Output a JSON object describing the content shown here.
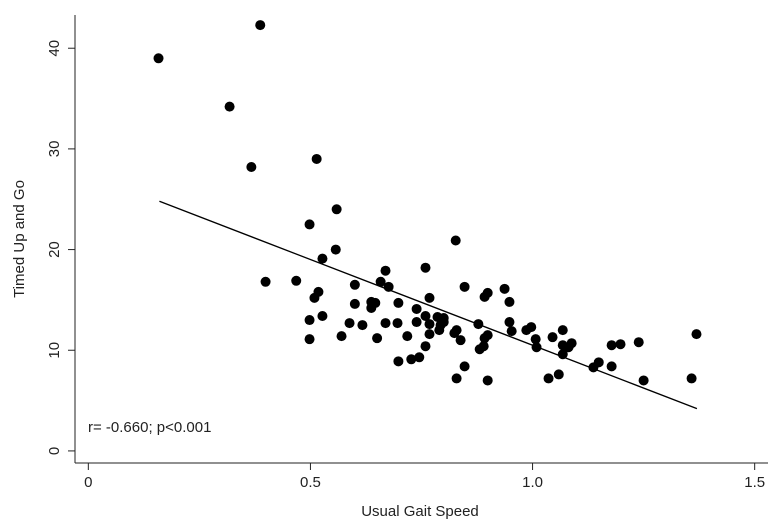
{
  "chart_data": {
    "type": "scatter",
    "x_label": "Usual Gait Speed",
    "y_label": "Timed Up and Go",
    "annotation": "r= -0.660; p<0.001",
    "color": "#000000",
    "x": [
      0.158,
      0.387,
      0.318,
      0.367,
      0.514,
      0.399,
      0.498,
      0.559,
      0.557,
      0.527,
      0.468,
      0.518,
      0.509,
      0.498,
      0.498,
      0.527,
      0.57,
      0.588,
      0.6,
      0.6,
      0.617,
      0.637,
      0.646,
      0.637,
      0.65,
      0.658,
      0.669,
      0.676,
      0.669,
      0.698,
      0.696,
      0.698,
      0.718,
      0.727,
      0.745,
      0.739,
      0.739,
      0.759,
      0.759,
      0.759,
      0.768,
      0.768,
      0.768,
      0.786,
      0.793,
      0.8,
      0.79,
      0.8,
      0.824,
      0.829,
      0.827,
      0.829,
      0.838,
      0.847,
      0.847,
      0.878,
      0.881,
      0.89,
      0.892,
      0.899,
      0.892,
      0.899,
      0.899,
      0.937,
      0.948,
      0.948,
      0.953,
      0.986,
      0.997,
      1.007,
      1.009,
      1.036,
      1.045,
      1.059,
      1.068,
      1.068,
      1.068,
      1.081,
      1.088,
      1.137,
      1.149,
      1.178,
      1.178,
      1.198,
      1.239,
      1.25,
      1.358,
      1.369
    ],
    "values": [
      39.0,
      42.3,
      34.2,
      28.2,
      29.0,
      16.8,
      22.5,
      24.0,
      20.0,
      19.1,
      16.9,
      15.8,
      15.2,
      13.0,
      11.1,
      13.4,
      11.4,
      12.7,
      16.5,
      14.6,
      12.5,
      14.8,
      14.7,
      14.2,
      11.2,
      16.8,
      17.9,
      16.3,
      12.7,
      14.7,
      12.7,
      8.9,
      11.4,
      9.1,
      9.3,
      14.1,
      12.8,
      10.4,
      13.4,
      18.2,
      15.2,
      12.6,
      11.6,
      13.3,
      12.5,
      13.2,
      12.0,
      12.8,
      11.7,
      12.0,
      20.9,
      7.2,
      11.0,
      16.3,
      8.4,
      12.6,
      10.1,
      10.4,
      15.3,
      15.7,
      11.2,
      11.5,
      7.0,
      16.1,
      14.8,
      12.8,
      11.9,
      12.0,
      12.3,
      11.1,
      10.3,
      7.2,
      11.3,
      7.6,
      12.0,
      10.5,
      9.6,
      10.3,
      10.7,
      8.3,
      8.8,
      10.5,
      8.4,
      10.6,
      10.8,
      7.0,
      7.2,
      11.6
    ],
    "fit": {
      "x": [
        0.16,
        1.37
      ],
      "y": [
        24.8,
        4.2
      ]
    },
    "xlim": [
      -0.03,
      1.53
    ],
    "ylim": [
      -1.2,
      43.3
    ],
    "xticks": [
      0,
      {
        "value": 0.5,
        "label": "0.5"
      },
      {
        "value": 1.0,
        "label": "1.0"
      },
      1.5
    ],
    "yticks": [
      0,
      10,
      20,
      30,
      40
    ]
  }
}
